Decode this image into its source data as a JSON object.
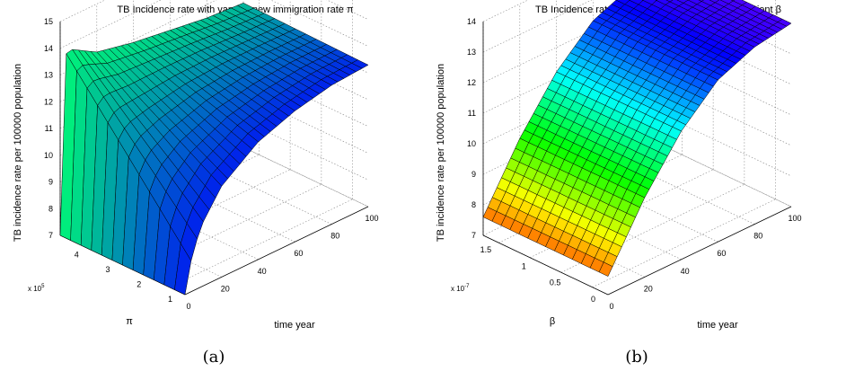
{
  "panels": [
    {
      "caption": "(a)",
      "chart_data": {
        "type": "surface",
        "title": "TB Incidence rate with varying new immigration rate π",
        "xlabel": "time year",
        "ylabel": "π",
        "zlabel": "TB incidence rate per 100000 population",
        "x_ticks": [
          "0",
          "20",
          "40",
          "60",
          "80",
          "100"
        ],
        "y_ticks": [
          "1",
          "2",
          "3",
          "4"
        ],
        "y_exponent": "x 10",
        "y_exponent_power": "5",
        "z_ticks": [
          "7",
          "8",
          "9",
          "10",
          "11",
          "12",
          "13",
          "14",
          "15"
        ],
        "xlim": [
          0,
          100
        ],
        "ylim": [
          1,
          5
        ],
        "zlim": [
          7,
          15
        ],
        "grid": true,
        "colormap": "winter",
        "surface_samples": {
          "x": [
            0,
            2,
            5,
            10,
            20,
            40,
            60,
            80,
            100
          ],
          "pi_x1e5": [
            1,
            5
          ],
          "z_at_pi_1": [
            7.0,
            7.8,
            8.6,
            9.4,
            10.4,
            11.4,
            11.9,
            12.2,
            12.3
          ],
          "z_at_pi_5": [
            7.0,
            13.6,
            13.8,
            13.6,
            13.2,
            12.9,
            12.7,
            12.5,
            12.4
          ]
        }
      }
    },
    {
      "caption": "(b)",
      "chart_data": {
        "type": "surface",
        "title": "TB Incidence rate with varying transmission coefficient β",
        "xlabel": "time year",
        "ylabel": "β",
        "zlabel": "TB incidence rate per 100000 population",
        "x_ticks": [
          "0",
          "20",
          "40",
          "60",
          "80",
          "100"
        ],
        "y_ticks": [
          "0",
          "0.5",
          "1",
          "1.5"
        ],
        "y_exponent": "x 10",
        "y_exponent_power": "-7",
        "z_ticks": [
          "7",
          "8",
          "9",
          "10",
          "11",
          "12",
          "13",
          "14"
        ],
        "xlim": [
          0,
          100
        ],
        "ylim": [
          0,
          1.8
        ],
        "zlim": [
          7,
          14
        ],
        "grid": true,
        "colormap": "hsv",
        "surface_samples": {
          "x": [
            0,
            20,
            40,
            60,
            80,
            100
          ],
          "beta_x1e-7": [
            0,
            1.8
          ],
          "z_at_beta_0": [
            7.6,
            9.6,
            11.2,
            12.3,
            12.8,
            13.0
          ],
          "z_at_beta_1_8": [
            7.6,
            9.6,
            11.2,
            12.3,
            12.8,
            13.0
          ]
        }
      }
    }
  ]
}
